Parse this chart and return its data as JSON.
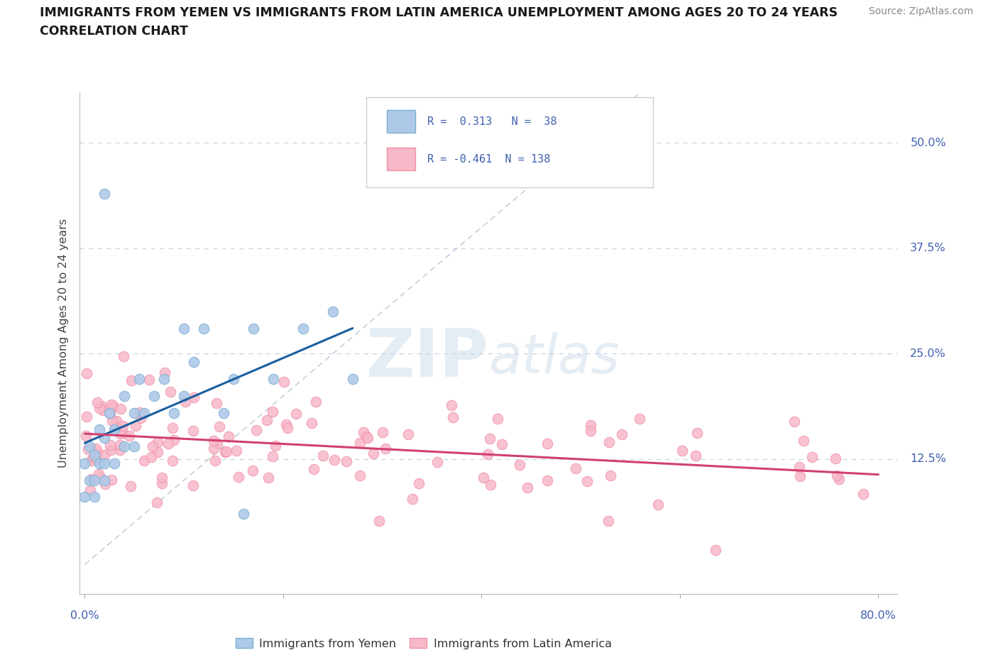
{
  "title_line1": "IMMIGRANTS FROM YEMEN VS IMMIGRANTS FROM LATIN AMERICA UNEMPLOYMENT AMONG AGES 20 TO 24 YEARS",
  "title_line2": "CORRELATION CHART",
  "source": "Source: ZipAtlas.com",
  "ylabel": "Unemployment Among Ages 20 to 24 years",
  "watermark_zip": "ZIP",
  "watermark_atlas": "atlas",
  "yemen_fill": "#aec9e8",
  "yemen_edge": "#7aaed0",
  "latin_fill": "#f7b8c8",
  "latin_edge": "#f090a8",
  "trend_yemen": "#1a5fa0",
  "trend_latin": "#d04070",
  "diag_color": "#b0bcd0",
  "grid_color": "#c8d4e4",
  "R_yemen": 0.313,
  "N_yemen": 38,
  "R_latin": -0.461,
  "N_latin": 138,
  "bg_color": "#ffffff",
  "label_color": "#4060b0",
  "title_color": "#1a1a1a",
  "source_color": "#888888",
  "legend_label_color": "#333333"
}
